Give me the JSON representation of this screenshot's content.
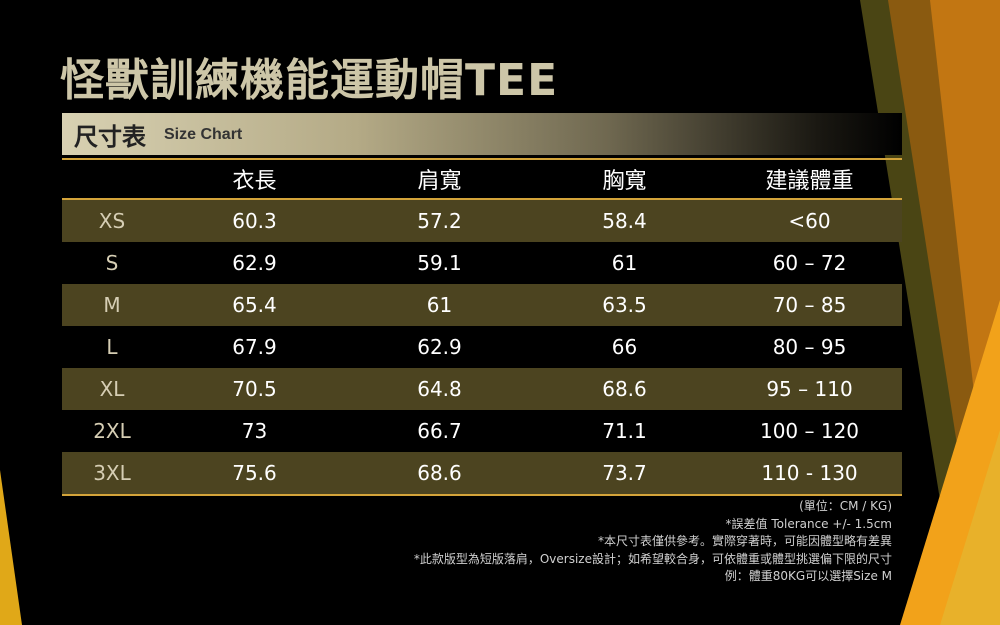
{
  "title": "怪獸訓練機能運動帽TEE",
  "banner": {
    "zh": "尺寸表",
    "en": "Size Chart"
  },
  "table": {
    "headers": [
      "",
      "衣長",
      "肩寬",
      "胸寬",
      "建議體重"
    ],
    "rows": [
      [
        "XS",
        "60.3",
        "57.2",
        "58.4",
        "<60"
      ],
      [
        "S",
        "62.9",
        "59.1",
        "61",
        "60 – 72"
      ],
      [
        "M",
        "65.4",
        "61",
        "63.5",
        "70 – 85"
      ],
      [
        "L",
        "67.9",
        "62.9",
        "66",
        "80 – 95"
      ],
      [
        "XL",
        "70.5",
        "64.8",
        "68.6",
        "95 – 110"
      ],
      [
        "2XL",
        "73",
        "66.7",
        "71.1",
        "100 – 120"
      ],
      [
        "3XL",
        "75.6",
        "68.6",
        "73.7",
        "110 - 130"
      ]
    ]
  },
  "notes": [
    "(單位：CM / KG)",
    "*誤差值 Tolerance +/- 1.5cm",
    "*本尺寸表僅供參考。實際穿著時，可能因體型略有差異",
    "*此款版型為短版落肩，Oversize設計；如希望較合身，可依體重或體型挑選偏下限的尺寸",
    "例：體重80KG可以選擇Size  M"
  ],
  "colors": {
    "accent": "#d4a43a",
    "row_band": "#4c4420",
    "title": "#cdc6a8"
  }
}
